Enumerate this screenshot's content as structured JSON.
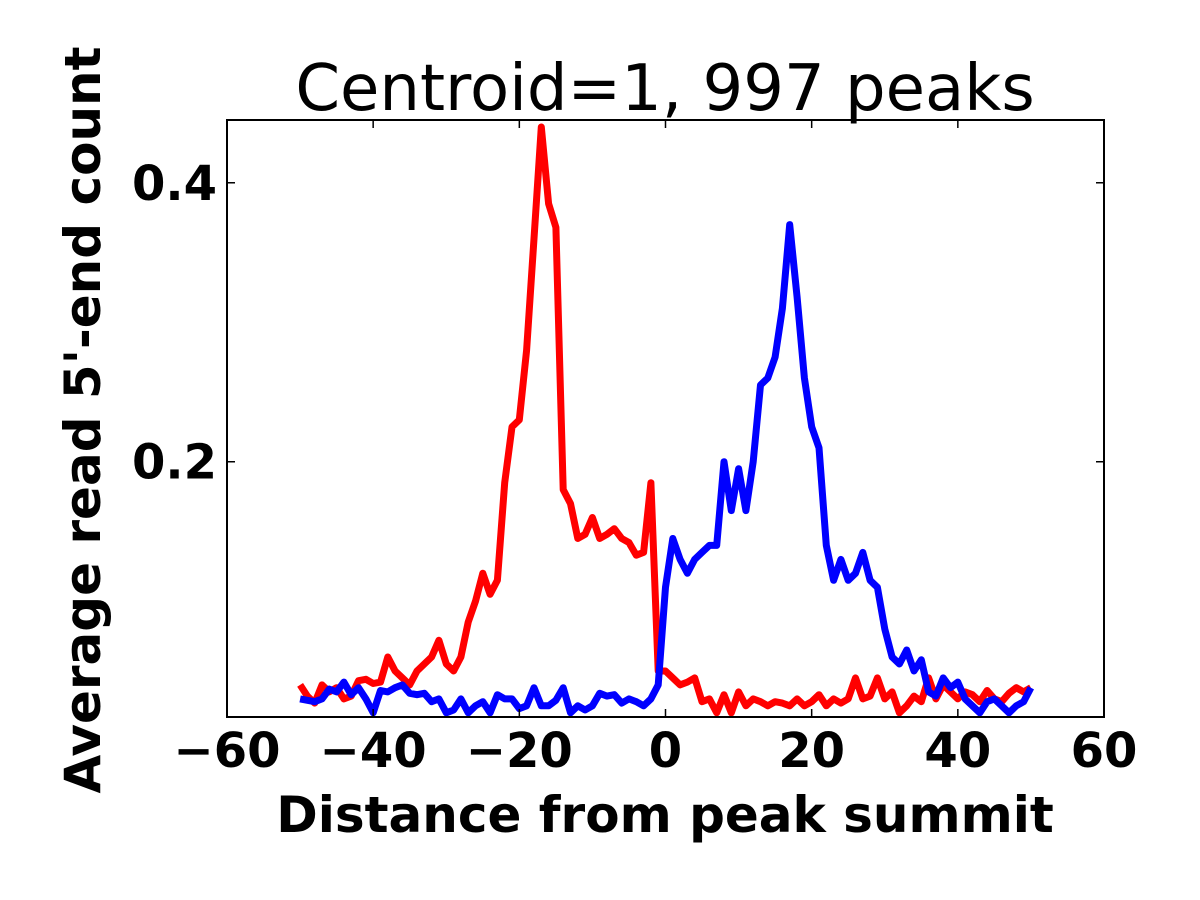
{
  "chart_data": {
    "type": "line",
    "title": "Centroid=1, 997 peaks",
    "xlabel": "Distance from peak summit",
    "ylabel": "Average read 5'-end count",
    "xlim": [
      -60,
      60
    ],
    "ylim": [
      0.017,
      0.445
    ],
    "xticks": [
      -60,
      -40,
      -20,
      0,
      20,
      40,
      60
    ],
    "xtick_labels": [
      "−60",
      "−40",
      "−20",
      "0",
      "20",
      "40",
      "60"
    ],
    "yticks": [
      0.2,
      0.4
    ],
    "ytick_labels": [
      "0.2",
      "0.4"
    ],
    "grid": false,
    "legend": "none",
    "x": [
      -50,
      -49,
      -48,
      -47,
      -46,
      -45,
      -44,
      -43,
      -42,
      -41,
      -40,
      -39,
      -38,
      -37,
      -36,
      -35,
      -34,
      -33,
      -32,
      -31,
      -30,
      -29,
      -28,
      -27,
      -26,
      -25,
      -24,
      -23,
      -22,
      -21,
      -20,
      -19,
      -18,
      -17,
      -16,
      -15,
      -14,
      -13,
      -12,
      -11,
      -10,
      -9,
      -8,
      -7,
      -6,
      -5,
      -4,
      -3,
      -2,
      -1,
      0,
      1,
      2,
      3,
      4,
      5,
      6,
      7,
      8,
      9,
      10,
      11,
      12,
      13,
      14,
      15,
      16,
      17,
      18,
      19,
      20,
      21,
      22,
      23,
      24,
      25,
      26,
      27,
      28,
      29,
      30,
      31,
      32,
      33,
      34,
      35,
      36,
      37,
      38,
      39,
      40,
      41,
      42,
      43,
      44,
      45,
      46,
      47,
      48,
      49,
      50
    ],
    "series": [
      {
        "color": "#ff0000",
        "values": [
          0.04,
          0.032,
          0.027,
          0.04,
          0.035,
          0.038,
          0.03,
          0.032,
          0.043,
          0.044,
          0.041,
          0.042,
          0.06,
          0.05,
          0.045,
          0.04,
          0.05,
          0.055,
          0.06,
          0.072,
          0.055,
          0.05,
          0.06,
          0.085,
          0.1,
          0.12,
          0.105,
          0.115,
          0.185,
          0.225,
          0.23,
          0.28,
          0.36,
          0.44,
          0.385,
          0.368,
          0.18,
          0.17,
          0.145,
          0.148,
          0.16,
          0.145,
          0.148,
          0.152,
          0.145,
          0.142,
          0.133,
          0.135,
          0.185,
          0.05,
          0.05,
          0.045,
          0.04,
          0.042,
          0.045,
          0.028,
          0.03,
          0.02,
          0.033,
          0.02,
          0.035,
          0.025,
          0.03,
          0.028,
          0.025,
          0.028,
          0.027,
          0.025,
          0.03,
          0.025,
          0.028,
          0.033,
          0.025,
          0.03,
          0.027,
          0.03,
          0.045,
          0.03,
          0.032,
          0.045,
          0.03,
          0.035,
          0.02,
          0.025,
          0.032,
          0.028,
          0.045,
          0.03,
          0.04,
          0.035,
          0.03,
          0.035,
          0.033,
          0.028,
          0.036,
          0.03,
          0.028,
          0.034,
          0.038,
          0.035,
          0.038
        ]
      },
      {
        "color": "#0000ff",
        "values": [
          0.03,
          0.029,
          0.028,
          0.03,
          0.037,
          0.035,
          0.042,
          0.033,
          0.038,
          0.03,
          0.02,
          0.036,
          0.035,
          0.038,
          0.04,
          0.034,
          0.033,
          0.034,
          0.028,
          0.03,
          0.02,
          0.022,
          0.03,
          0.02,
          0.025,
          0.028,
          0.02,
          0.033,
          0.03,
          0.03,
          0.023,
          0.025,
          0.038,
          0.025,
          0.025,
          0.029,
          0.038,
          0.02,
          0.025,
          0.022,
          0.025,
          0.034,
          0.032,
          0.033,
          0.027,
          0.03,
          0.028,
          0.025,
          0.03,
          0.04,
          0.11,
          0.145,
          0.13,
          0.12,
          0.13,
          0.135,
          0.14,
          0.14,
          0.2,
          0.165,
          0.195,
          0.165,
          0.2,
          0.255,
          0.26,
          0.275,
          0.31,
          0.37,
          0.318,
          0.26,
          0.225,
          0.21,
          0.14,
          0.115,
          0.13,
          0.115,
          0.12,
          0.135,
          0.115,
          0.11,
          0.08,
          0.06,
          0.055,
          0.065,
          0.05,
          0.058,
          0.035,
          0.032,
          0.045,
          0.038,
          0.042,
          0.03,
          0.025,
          0.02,
          0.028,
          0.03,
          0.025,
          0.02,
          0.025,
          0.028,
          0.038
        ]
      }
    ]
  }
}
